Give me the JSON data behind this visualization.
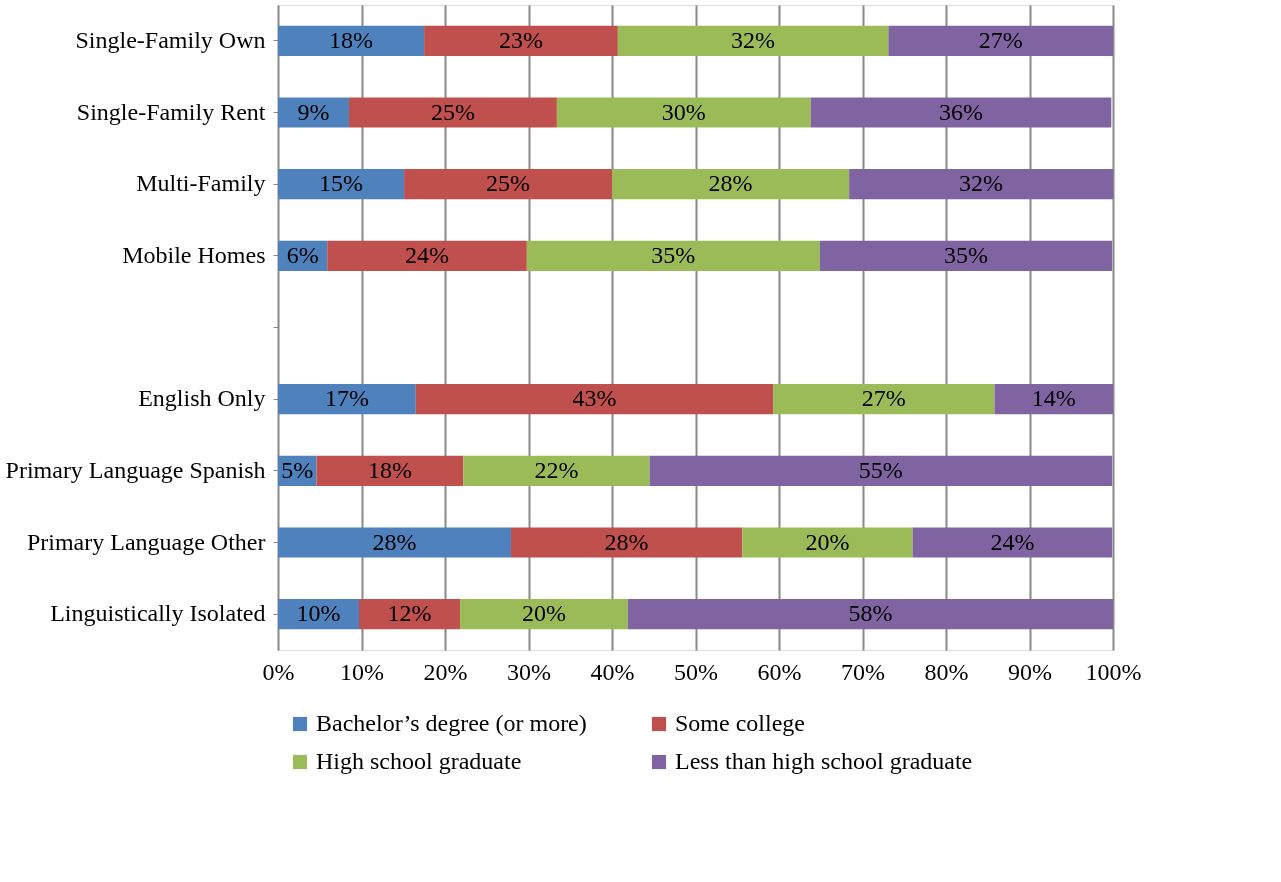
{
  "chart_data": {
    "type": "bar",
    "orientation": "horizontal",
    "stacked": true,
    "categories": [
      "Single-Family Own",
      "Single-Family Rent",
      "Multi-Family",
      "Mobile Homes",
      null,
      "English Only",
      "Primary Language Spanish",
      "Primary Language Other",
      "Linguistically Isolated"
    ],
    "series": [
      {
        "name": "Bachelor’s degree (or more)",
        "color": "#4f81bd",
        "values": [
          17.5,
          8.5,
          15.1,
          5.9,
          null,
          16.5,
          4.6,
          27.9,
          9.7
        ],
        "value_labels": [
          "18%",
          "9%",
          "15%",
          "6%",
          null,
          "17%",
          "5%",
          "28%",
          "10%"
        ]
      },
      {
        "name": "Some college",
        "color": "#c0504d",
        "values": [
          23.2,
          24.9,
          24.9,
          23.9,
          null,
          42.8,
          17.6,
          27.7,
          12.1
        ],
        "value_labels": [
          "23%",
          "25%",
          "25%",
          "24%",
          null,
          "43%",
          "18%",
          "28%",
          "12%"
        ]
      },
      {
        "name": "High school graduate",
        "color": "#9bbb59",
        "values": [
          32.4,
          30.4,
          28.4,
          35.1,
          null,
          26.5,
          22.3,
          20.4,
          20.1
        ],
        "value_labels": [
          "32%",
          "30%",
          "28%",
          "35%",
          null,
          "27%",
          "22%",
          "20%",
          "20%"
        ]
      },
      {
        "name": "Less than high school graduate",
        "color": "#8064a2",
        "values": [
          26.9,
          36.0,
          31.6,
          35.0,
          null,
          14.2,
          55.4,
          23.9,
          58.1
        ],
        "value_labels": [
          "27%",
          "36%",
          "32%",
          "35%",
          null,
          "14%",
          "55%",
          "24%",
          "58%"
        ]
      }
    ],
    "xlim": [
      0,
      100
    ],
    "xticks": [
      {
        "value": 0,
        "label": "0%"
      },
      {
        "value": 10,
        "label": "10%"
      },
      {
        "value": 20,
        "label": "20%"
      },
      {
        "value": 30,
        "label": "30%"
      },
      {
        "value": 40,
        "label": "40%"
      },
      {
        "value": 50,
        "label": "50%"
      },
      {
        "value": 60,
        "label": "60%"
      },
      {
        "value": 70,
        "label": "70%"
      },
      {
        "value": 80,
        "label": "80%"
      },
      {
        "value": 90,
        "label": "90%"
      },
      {
        "value": 100,
        "label": "100%"
      }
    ],
    "grid": "x",
    "legend": "bottom"
  }
}
